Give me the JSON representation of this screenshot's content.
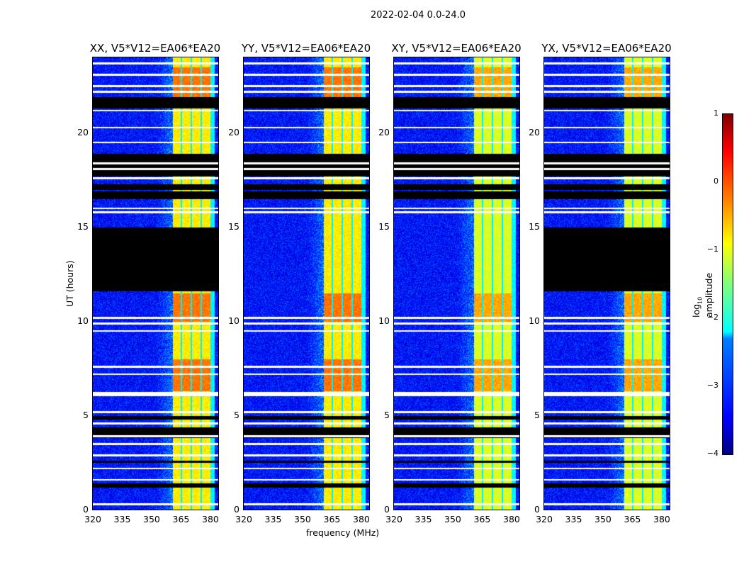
{
  "figure_title": "2022-02-04 0.0-24.0",
  "chart_data": {
    "type": "heatmap",
    "title": "2022-02-04 0.0-24.0",
    "xlabel": "frequency (MHz)",
    "ylabel": "UT (hours)",
    "xlim": [
      320,
      384
    ],
    "ylim": [
      0,
      24
    ],
    "xticks": [
      "320",
      "335",
      "350",
      "365",
      "380"
    ],
    "yticks": [
      "0",
      "5",
      "10",
      "15",
      "20"
    ],
    "colormap": "jet",
    "colorbar": {
      "label": "log10 amplitude",
      "label_main": "log",
      "label_sub": "10",
      "label_rest": " amplitude",
      "range": [
        -4,
        1
      ],
      "ticks": [
        "1",
        "0",
        "−1",
        "−2",
        "−3",
        "−4"
      ]
    },
    "background_level": -3.3,
    "rfi_band_mhz": [
      360.5,
      380
    ],
    "rfi_band_level": -0.8,
    "rfi_band_gaps_mhz": [
      365,
      370,
      375
    ],
    "strong_rfi_hours": [
      [
        6.3,
        8.0
      ],
      [
        10.0,
        11.5
      ],
      [
        21.5,
        23.5
      ]
    ],
    "blank_hour_lines": [
      0.3,
      1.6,
      2.2,
      2.9,
      3.5,
      3.9,
      4.6,
      5.2,
      6.1,
      6.2,
      7.2,
      7.6,
      9.5,
      9.9,
      10.2,
      15.8,
      16.0,
      17.6,
      18.1,
      18.4,
      19.5,
      20.3,
      21.2,
      22.2,
      22.5,
      23.1,
      23.7
    ],
    "flag_hours_all": [
      [
        1.2,
        1.4
      ],
      [
        2.5,
        2.6
      ],
      [
        3.8,
        4.4
      ],
      [
        4.8,
        5.0
      ],
      [
        16.5,
        16.9
      ],
      [
        17.0,
        17.3
      ],
      [
        17.7,
        18.9
      ],
      [
        21.3,
        21.9
      ]
    ],
    "panels": [
      {
        "title": "XX, V5*V12=EA06*EA20",
        "flag_hours": [
          [
            11.6,
            15.0
          ]
        ]
      },
      {
        "title": "YY, V5*V12=EA06*EA20",
        "flag_hours": []
      },
      {
        "title": "XY, V5*V12=EA06*EA20",
        "flag_hours": []
      },
      {
        "title": "YX, V5*V12=EA06*EA20",
        "flag_hours": [
          [
            11.6,
            15.0
          ]
        ]
      }
    ]
  }
}
